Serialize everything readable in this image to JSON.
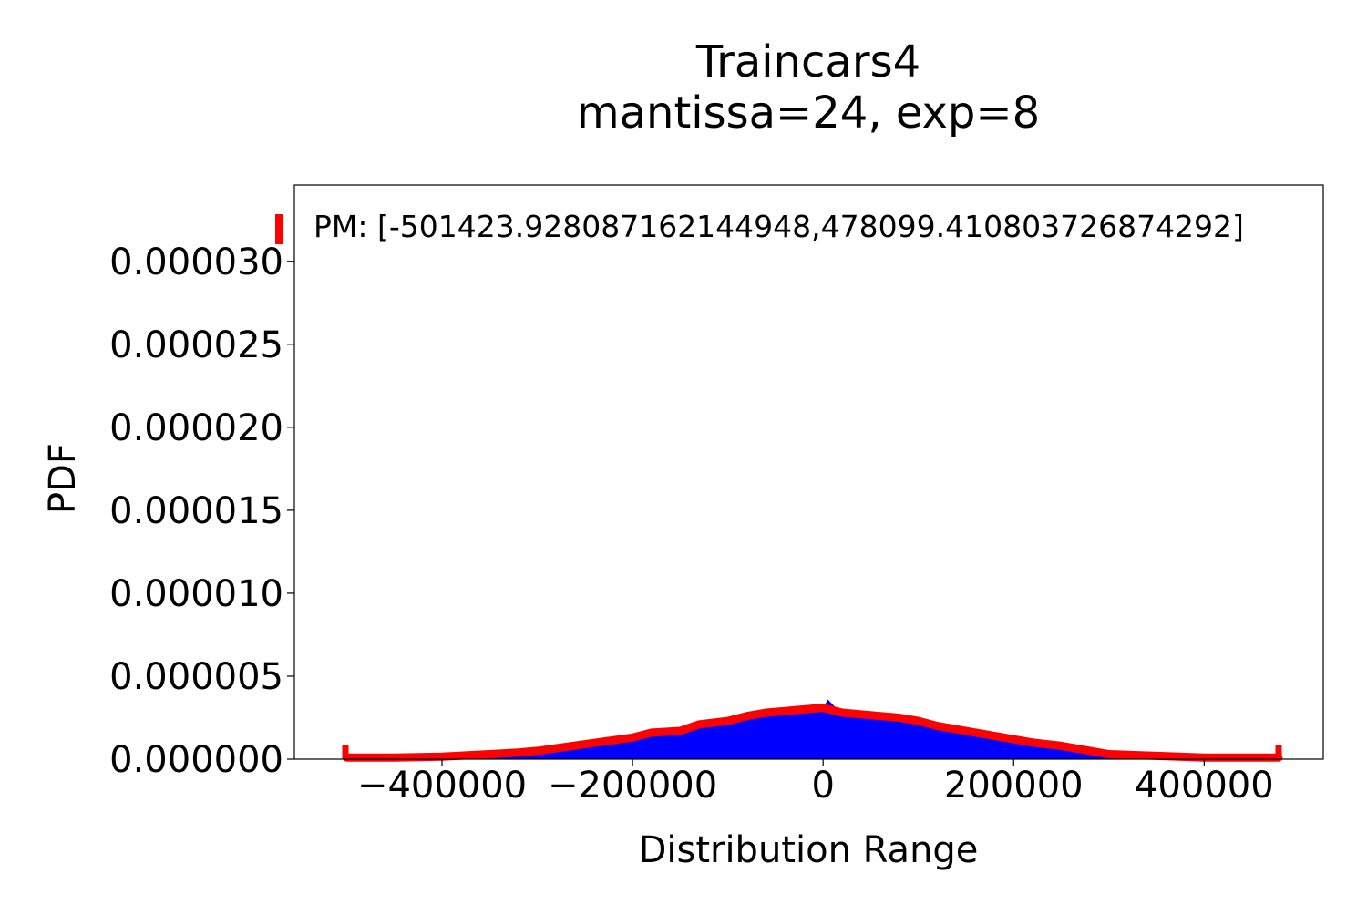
{
  "chart_data": {
    "type": "area",
    "title": "Traincars4",
    "subtitle": "mantissa=24, exp=8",
    "xlabel": "Distribution Range",
    "ylabel": "PDF",
    "annotation": "PM: [-501423.928087162144948,478099.410803726874292]",
    "xlim": [
      -555000,
      525000
    ],
    "ylim": [
      0,
      3.46e-05
    ],
    "x_ticks": [
      -400000,
      -200000,
      0,
      200000,
      400000
    ],
    "x_tick_labels": [
      "−400000",
      "−200000",
      "0",
      "200000",
      "400000"
    ],
    "y_ticks": [
      0,
      5e-06,
      1e-05,
      1.5e-05,
      2e-05,
      2.5e-05,
      3e-05
    ],
    "y_tick_labels": [
      "0.000000",
      "0.000005",
      "0.000010",
      "0.000015",
      "0.000020",
      "0.000025",
      "0.000030"
    ],
    "grid": false,
    "range_min": -501423.92808716214,
    "range_max": 478099.4108037269,
    "colors": {
      "histogram": "#0000ff",
      "pdf_line": "#ff0000",
      "range_marker": "#ff0000"
    },
    "series": [
      {
        "type": "area",
        "color": "#0000ff",
        "x": [
          -500000,
          -400000,
          -350000,
          -300000,
          -250000,
          -200000,
          -150000,
          -120000,
          -80000,
          -50000,
          -20000,
          0,
          5000,
          20000,
          50000,
          80000,
          100000,
          130000,
          160000,
          180000,
          200000,
          240000,
          260000,
          300000,
          350000,
          400000,
          478000
        ],
        "y": [
          1e-07,
          2e-07,
          3.5e-07,
          5e-07,
          9e-07,
          1.3e-06,
          1.7e-06,
          2.1e-06,
          2.6e-06,
          2.8e-06,
          2.9e-06,
          3.1e-06,
          3.6e-06,
          2.7e-06,
          2.6e-06,
          2.5e-06,
          2.3e-06,
          1.9e-06,
          1.6e-06,
          1.3e-06,
          1.1e-06,
          8e-07,
          6e-07,
          3e-07,
          1.5e-07,
          1e-07,
          1e-07
        ]
      },
      {
        "type": "line",
        "color": "#ff0000",
        "x": [
          -500000,
          -450000,
          -400000,
          -350000,
          -320000,
          -300000,
          -250000,
          -200000,
          -180000,
          -150000,
          -130000,
          -100000,
          -80000,
          -60000,
          -40000,
          -20000,
          0,
          20000,
          40000,
          60000,
          80000,
          100000,
          120000,
          150000,
          170000,
          200000,
          220000,
          250000,
          270000,
          300000,
          350000,
          400000,
          450000,
          478000
        ],
        "y": [
          1e-07,
          1e-07,
          1.5e-07,
          3e-07,
          4e-07,
          5e-07,
          9e-07,
          1.3e-06,
          1.6e-06,
          1.7e-06,
          2.1e-06,
          2.3e-06,
          2.6e-06,
          2.8e-06,
          2.9e-06,
          3e-06,
          3.1e-06,
          2.8e-06,
          2.7e-06,
          2.6e-06,
          2.5e-06,
          2.3e-06,
          2e-06,
          1.7e-06,
          1.5e-06,
          1.2e-06,
          1e-06,
          8e-07,
          6e-07,
          3e-07,
          2e-07,
          1e-07,
          1e-07,
          1e-07
        ]
      }
    ]
  }
}
